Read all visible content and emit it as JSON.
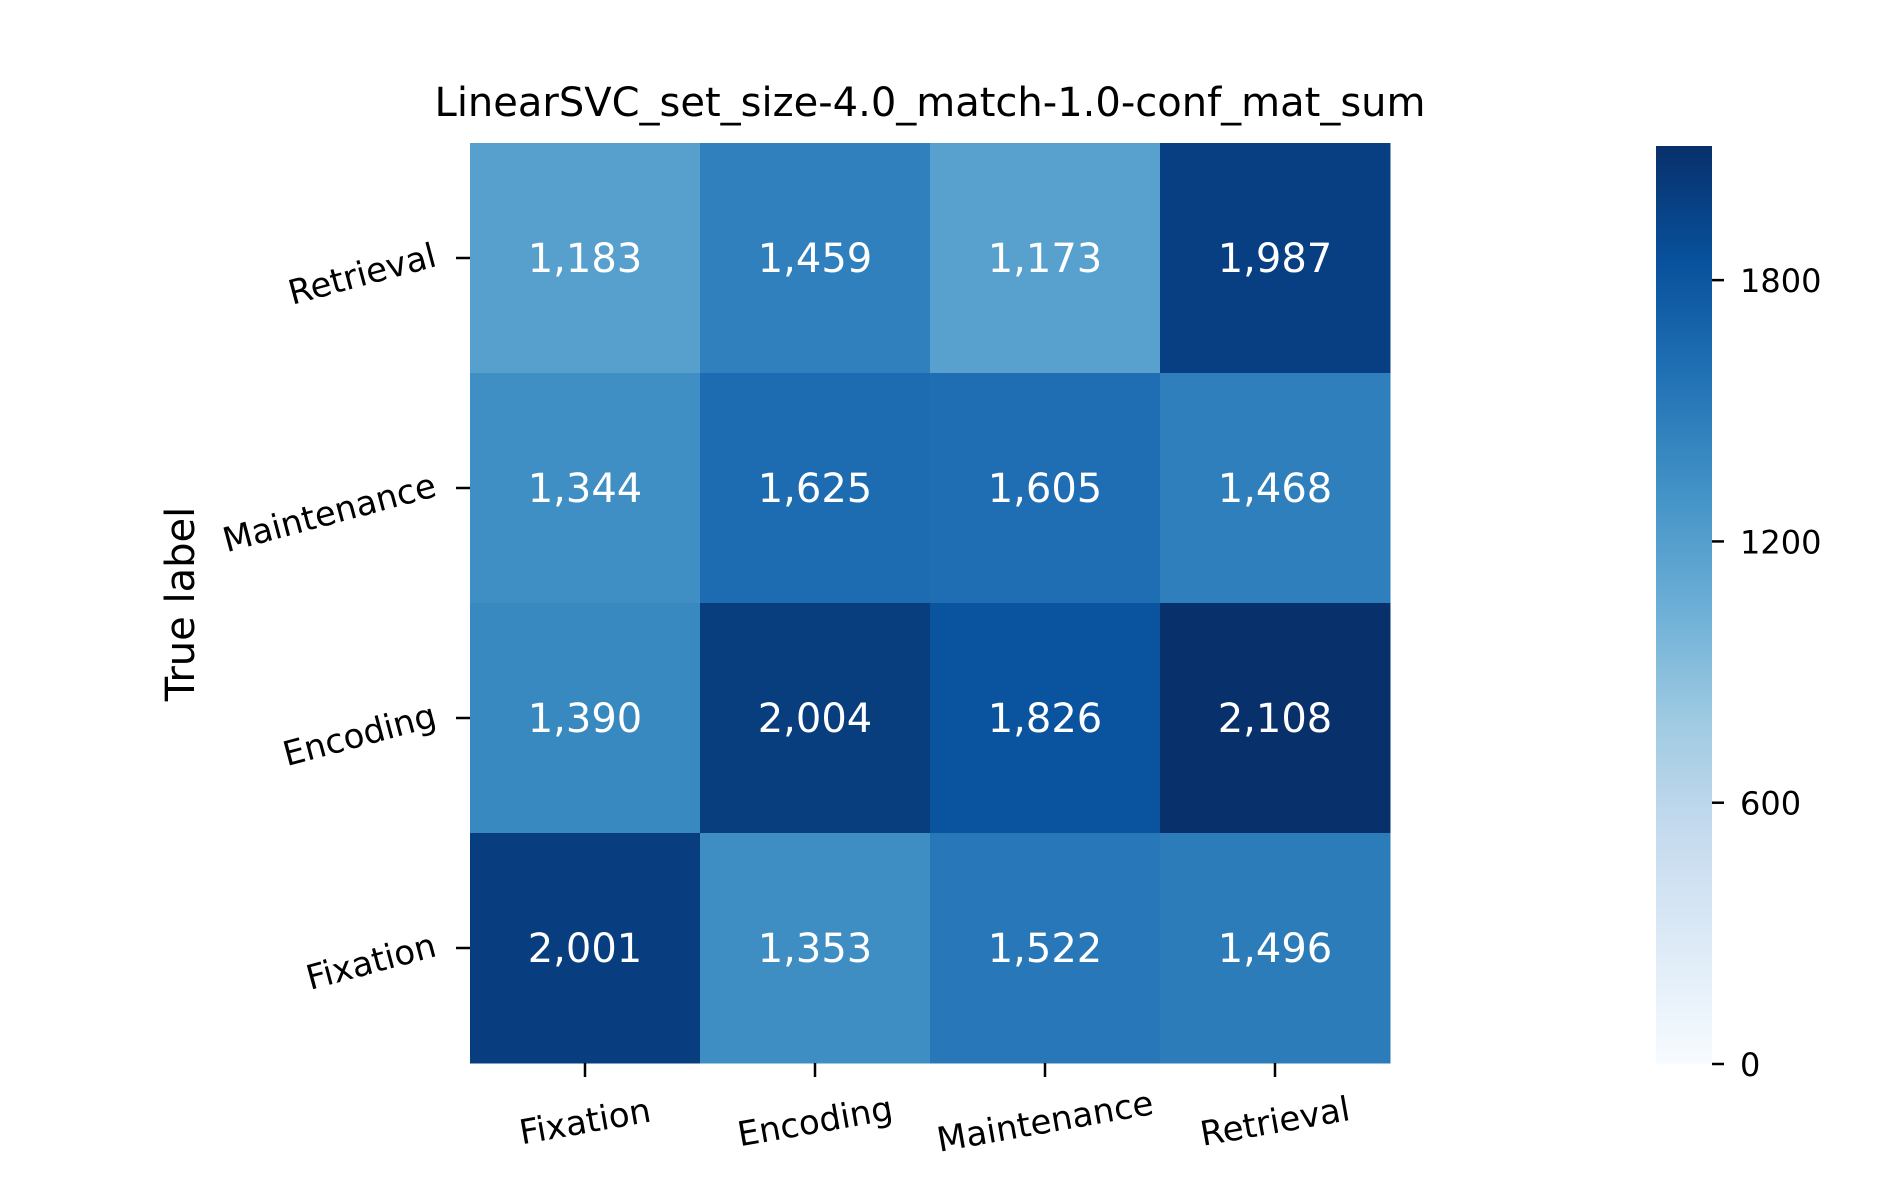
{
  "chart_data": {
    "type": "heatmap",
    "title": "LinearSVC_set_size-4.0_match-1.0-conf_mat_sum",
    "ylabel": "True label",
    "xlabel": "",
    "x_categories": [
      "Fixation",
      "Encoding",
      "Maintenance",
      "Retrieval"
    ],
    "y_categories": [
      "Fixation",
      "Encoding",
      "Maintenance",
      "Retrieval"
    ],
    "matrix": [
      {
        "row": "Retrieval",
        "values": [
          1183,
          1459,
          1173,
          1987
        ],
        "labels": [
          "1,183",
          "1,459",
          "1,173",
          "1,987"
        ]
      },
      {
        "row": "Maintenance",
        "values": [
          1344,
          1625,
          1605,
          1468
        ],
        "labels": [
          "1,344",
          "1,625",
          "1,605",
          "1,468"
        ]
      },
      {
        "row": "Encoding",
        "values": [
          1390,
          2004,
          1826,
          2108
        ],
        "labels": [
          "1,390",
          "2,004",
          "1,826",
          "2,108"
        ]
      },
      {
        "row": "Fixation",
        "values": [
          2001,
          1353,
          1522,
          1496
        ],
        "labels": [
          "2,001",
          "1,353",
          "1,522",
          "1,496"
        ]
      }
    ],
    "colorbar": {
      "min": 0,
      "max": 2108,
      "ticks": [
        0,
        600,
        1200,
        1800
      ],
      "tick_labels": [
        "0",
        "600",
        "1200",
        "1800"
      ],
      "colormap": "Blues"
    },
    "grid": false,
    "legend": "colorbar-right"
  },
  "colors": {
    "cell_text": "#ffffff",
    "axis_text": "#000000"
  }
}
